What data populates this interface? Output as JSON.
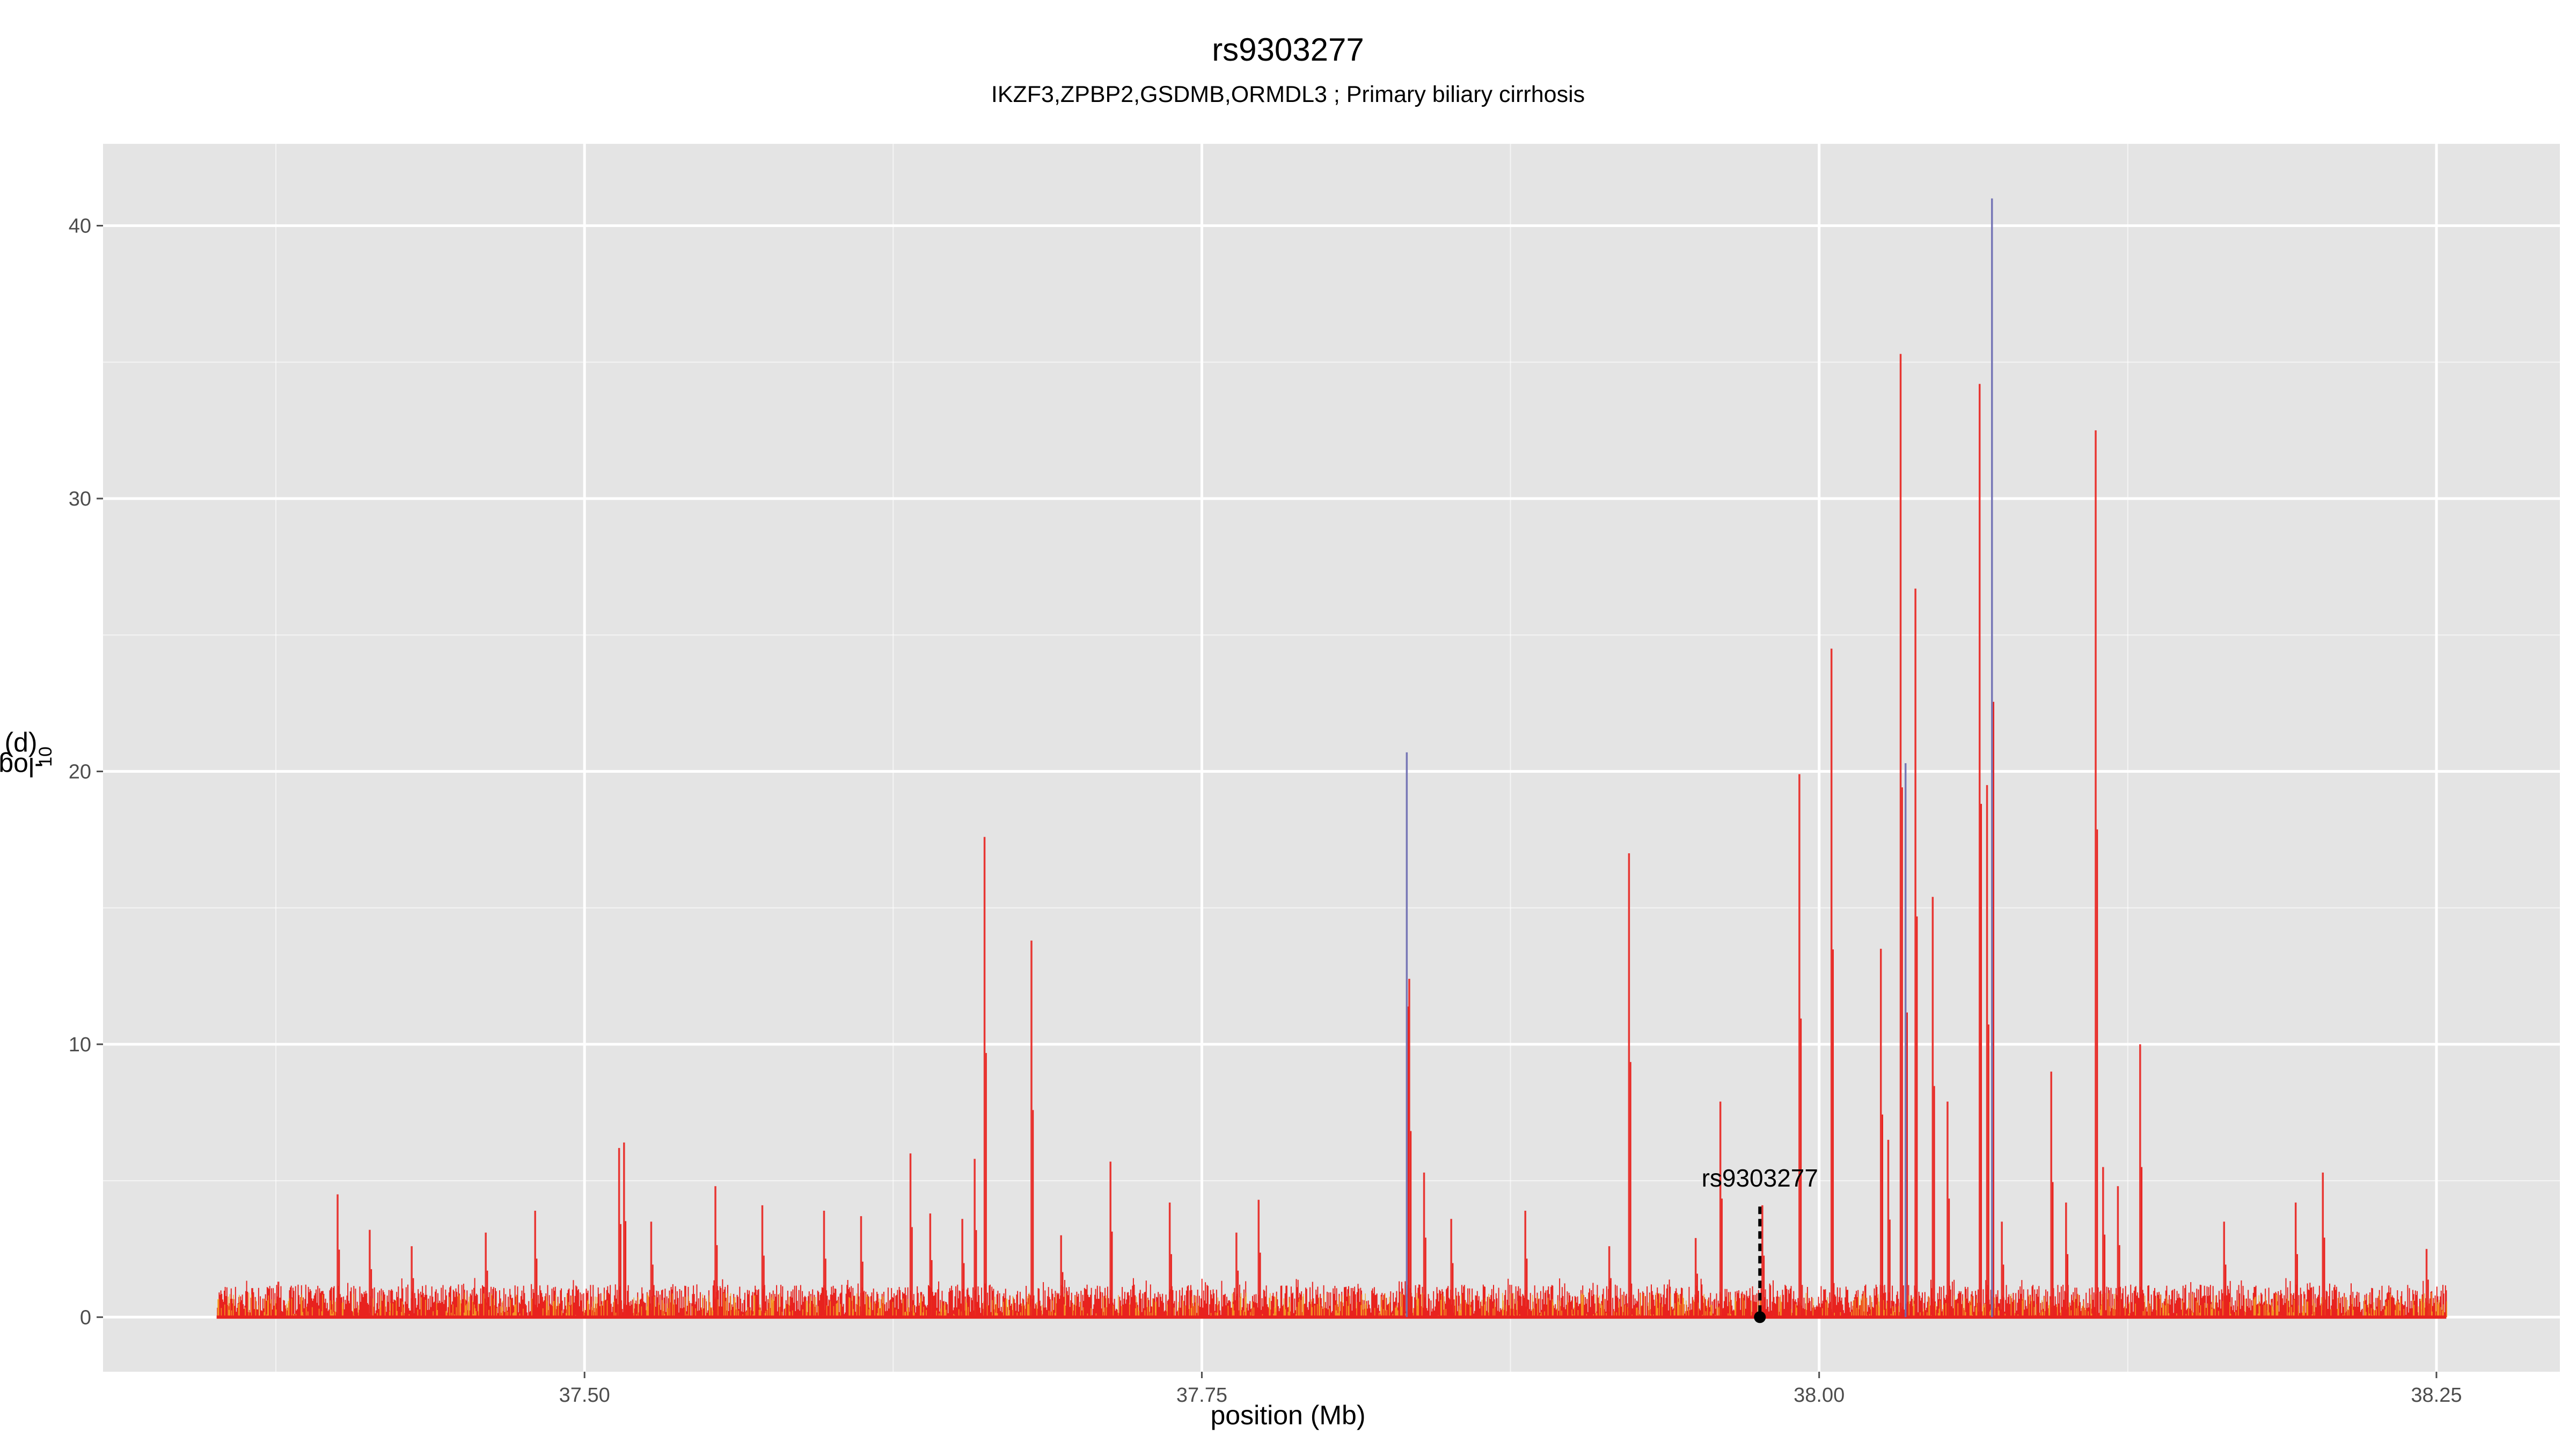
{
  "chart_data": {
    "type": "area",
    "title": "rs9303277",
    "subtitle": "IKZF3,ZPBP2,GSDMB,ORMDL3 ; Primary biliary cirrhosis",
    "xlabel": "position (Mb)",
    "ylabel": {
      "prefix": "-log",
      "sub": "10",
      "suffix": "(p)"
    },
    "xlim": [
      37.305,
      38.3
    ],
    "ylim": [
      -2,
      43
    ],
    "x_ticks": [
      37.5,
      37.75,
      38.0,
      38.25
    ],
    "x_tick_labels": [
      "37.50",
      "37.75",
      "38.00",
      "38.25"
    ],
    "y_ticks": [
      0,
      10,
      20,
      30,
      40
    ],
    "y_tick_labels": [
      "0",
      "10",
      "20",
      "30",
      "40"
    ],
    "grid": true,
    "background_color": "#e4e4e4",
    "grid_color": "#ffffff",
    "series_colors": [
      "#e8221e",
      "#f5a623",
      "#6a6ab0"
    ],
    "data_range": [
      37.351,
      38.254
    ],
    "series": [
      {
        "x": [
          37.376,
          37.4,
          37.413,
          37.43,
          37.46,
          37.48,
          37.514,
          37.516,
          37.527,
          37.553,
          37.572,
          37.597,
          37.612,
          37.632,
          37.64,
          37.653,
          37.658,
          37.662,
          37.681,
          37.693,
          37.713,
          37.737,
          37.764,
          37.773,
          37.833,
          37.834,
          37.84,
          37.851,
          37.881,
          37.915,
          37.923,
          37.95,
          37.96,
          37.977,
          37.992,
          38.005,
          38.025,
          38.028,
          38.033,
          38.035,
          38.039,
          38.046,
          38.052,
          38.065,
          38.068,
          38.07,
          38.074,
          38.094,
          38.1,
          38.112,
          38.115,
          38.121,
          38.13,
          38.164,
          38.193,
          38.204,
          38.246
        ],
        "y": [
          1.3,
          4.5,
          3.2,
          2.6,
          3.1,
          3.9,
          6.2,
          6.4,
          3.5,
          4.8,
          4.1,
          3.9,
          3.7,
          6.0,
          3.8,
          3.6,
          5.8,
          17.6,
          13.8,
          3.0,
          5.7,
          4.2,
          3.1,
          4.3,
          20.7,
          12.4,
          5.3,
          3.6,
          3.9,
          2.6,
          17.0,
          2.9,
          7.9,
          4.1,
          19.9,
          24.5,
          13.5,
          6.5,
          35.3,
          20.3,
          26.7,
          15.4,
          7.9,
          34.2,
          19.5,
          41.0,
          3.5,
          9.0,
          4.2,
          32.5,
          5.5,
          4.8,
          10.0,
          3.5,
          4.2,
          5.3,
          2.5
        ]
      }
    ],
    "annotations": [
      {
        "label": "rs9303277",
        "x": 37.976,
        "y": 0
      }
    ]
  }
}
